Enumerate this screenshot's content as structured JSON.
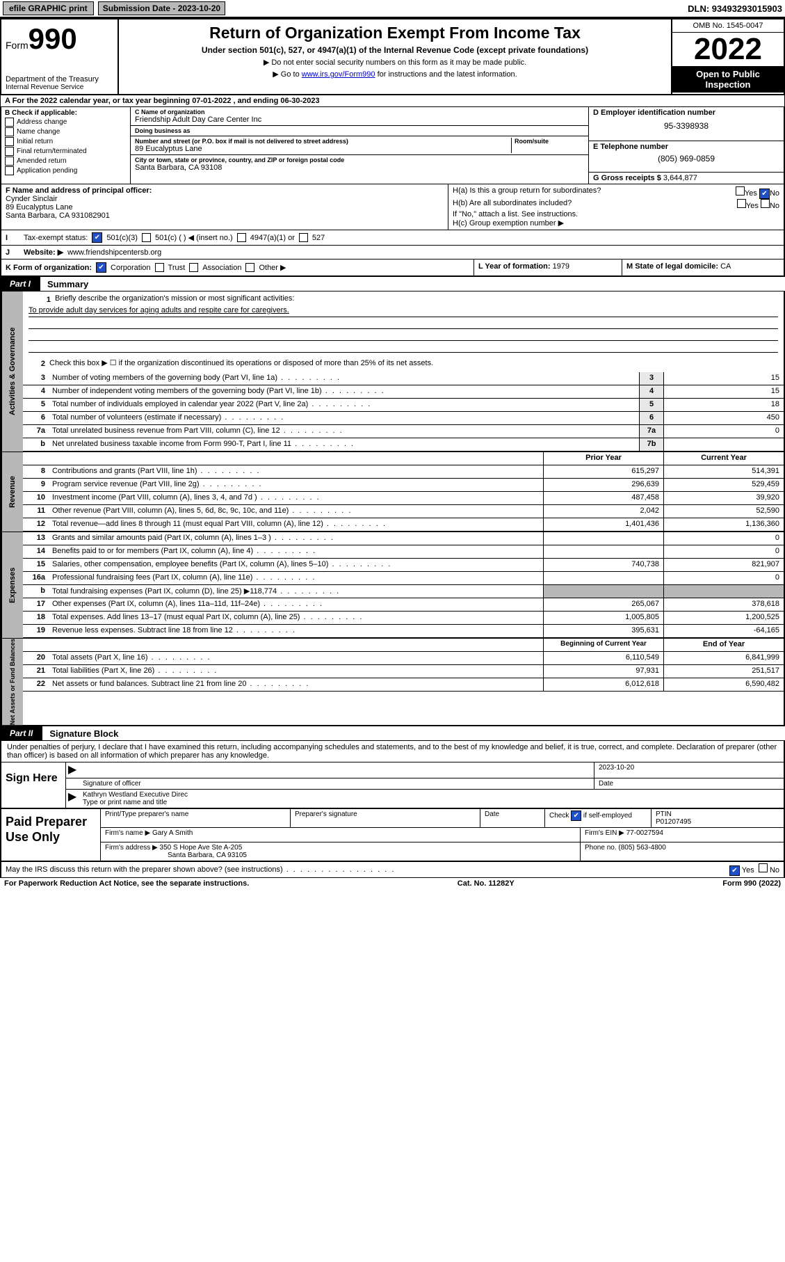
{
  "topbar": {
    "efile": "efile GRAPHIC print",
    "submission_label": "Submission Date - 2023-10-20",
    "dln": "DLN: 93493293015903"
  },
  "header": {
    "form_word": "Form",
    "form_num": "990",
    "title": "Return of Organization Exempt From Income Tax",
    "subtitle": "Under section 501(c), 527, or 4947(a)(1) of the Internal Revenue Code (except private foundations)",
    "note1": "▶ Do not enter social security numbers on this form as it may be made public.",
    "note2_pre": "▶ Go to ",
    "note2_link": "www.irs.gov/Form990",
    "note2_post": " for instructions and the latest information.",
    "dept": "Department of the Treasury",
    "irs": "Internal Revenue Service",
    "omb": "OMB No. 1545-0047",
    "year": "2022",
    "public1": "Open to Public",
    "public2": "Inspection"
  },
  "row_a": "A For the 2022 calendar year, or tax year beginning 07-01-2022     , and ending 06-30-2023",
  "b": {
    "heading": "B Check if applicable:",
    "opts": [
      "Address change",
      "Name change",
      "Initial return",
      "Final return/terminated",
      "Amended return",
      "Application pending"
    ]
  },
  "c": {
    "name_lbl": "C Name of organization",
    "name": "Friendship Adult Day Care Center Inc",
    "dba_lbl": "Doing business as",
    "dba": "",
    "addr_lbl": "Number and street (or P.O. box if mail is not delivered to street address)",
    "room_lbl": "Room/suite",
    "addr": "89 Eucalyptus Lane",
    "city_lbl": "City or town, state or province, country, and ZIP or foreign postal code",
    "city": "Santa Barbara, CA  93108"
  },
  "d": {
    "ein_lbl": "D Employer identification number",
    "ein": "95-3398938",
    "tel_lbl": "E Telephone number",
    "tel": "(805) 969-0859",
    "gross_lbl": "G Gross receipts $",
    "gross": "3,644,877"
  },
  "f": {
    "lbl": "F Name and address of principal officer:",
    "name": "Cynder Sinclair",
    "addr1": "89 Eucalyptus Lane",
    "addr2": "Santa Barbara, CA  931082901"
  },
  "h": {
    "a": "H(a)  Is this a group return for subordinates?",
    "b": "H(b)  Are all subordinates included?",
    "note": "If \"No,\" attach a list. See instructions.",
    "c": "H(c)  Group exemption number ▶"
  },
  "i": {
    "lbl": "Tax-exempt status:",
    "o1": "501(c)(3)",
    "o2": "501(c) (  ) ◀ (insert no.)",
    "o3": "4947(a)(1) or",
    "o4": "527"
  },
  "j": {
    "lbl": "Website: ▶",
    "val": "www.friendshipcentersb.org"
  },
  "k": {
    "lbl": "K Form of organization:",
    "o1": "Corporation",
    "o2": "Trust",
    "o3": "Association",
    "o4": "Other ▶"
  },
  "l": {
    "lbl": "L Year of formation:",
    "val": "1979"
  },
  "m": {
    "lbl": "M State of legal domicile:",
    "val": "CA"
  },
  "part1": {
    "tag": "Part I",
    "title": "Summary",
    "q1": "Briefly describe the organization's mission or most significant activities:",
    "mission": "To provide adult day services for aging adults and respite care for caregivers.",
    "q2": "Check this box ▶ ☐  if the organization discontinued its operations or disposed of more than 25% of its net assets.",
    "lines_gov": [
      {
        "n": "3",
        "t": "Number of voting members of the governing body (Part VI, line 1a)",
        "box": "3",
        "v": "15"
      },
      {
        "n": "4",
        "t": "Number of independent voting members of the governing body (Part VI, line 1b)",
        "box": "4",
        "v": "15"
      },
      {
        "n": "5",
        "t": "Total number of individuals employed in calendar year 2022 (Part V, line 2a)",
        "box": "5",
        "v": "18"
      },
      {
        "n": "6",
        "t": "Total number of volunteers (estimate if necessary)",
        "box": "6",
        "v": "450"
      },
      {
        "n": "7a",
        "t": "Total unrelated business revenue from Part VIII, column (C), line 12",
        "box": "7a",
        "v": "0"
      },
      {
        "n": "b",
        "t": "Net unrelated business taxable income from Form 990-T, Part I, line 11",
        "box": "7b",
        "v": ""
      }
    ],
    "col_hdr1": "Prior Year",
    "col_hdr2": "Current Year",
    "rev": [
      {
        "n": "8",
        "t": "Contributions and grants (Part VIII, line 1h)",
        "p": "615,297",
        "c": "514,391"
      },
      {
        "n": "9",
        "t": "Program service revenue (Part VIII, line 2g)",
        "p": "296,639",
        "c": "529,459"
      },
      {
        "n": "10",
        "t": "Investment income (Part VIII, column (A), lines 3, 4, and 7d )",
        "p": "487,458",
        "c": "39,920"
      },
      {
        "n": "11",
        "t": "Other revenue (Part VIII, column (A), lines 5, 6d, 8c, 9c, 10c, and 11e)",
        "p": "2,042",
        "c": "52,590"
      },
      {
        "n": "12",
        "t": "Total revenue—add lines 8 through 11 (must equal Part VIII, column (A), line 12)",
        "p": "1,401,436",
        "c": "1,136,360"
      }
    ],
    "exp": [
      {
        "n": "13",
        "t": "Grants and similar amounts paid (Part IX, column (A), lines 1–3 )",
        "p": "",
        "c": "0"
      },
      {
        "n": "14",
        "t": "Benefits paid to or for members (Part IX, column (A), line 4)",
        "p": "",
        "c": "0"
      },
      {
        "n": "15",
        "t": "Salaries, other compensation, employee benefits (Part IX, column (A), lines 5–10)",
        "p": "740,738",
        "c": "821,907"
      },
      {
        "n": "16a",
        "t": "Professional fundraising fees (Part IX, column (A), line 11e)",
        "p": "",
        "c": "0"
      },
      {
        "n": "b",
        "t": "Total fundraising expenses (Part IX, column (D), line 25) ▶118,774",
        "p": "GRAY",
        "c": "GRAY"
      },
      {
        "n": "17",
        "t": "Other expenses (Part IX, column (A), lines 11a–11d, 11f–24e)",
        "p": "265,067",
        "c": "378,618"
      },
      {
        "n": "18",
        "t": "Total expenses. Add lines 13–17 (must equal Part IX, column (A), line 25)",
        "p": "1,005,805",
        "c": "1,200,525"
      },
      {
        "n": "19",
        "t": "Revenue less expenses. Subtract line 18 from line 12",
        "p": "395,631",
        "c": "-64,165"
      }
    ],
    "col_hdr3": "Beginning of Current Year",
    "col_hdr4": "End of Year",
    "net": [
      {
        "n": "20",
        "t": "Total assets (Part X, line 16)",
        "p": "6,110,549",
        "c": "6,841,999"
      },
      {
        "n": "21",
        "t": "Total liabilities (Part X, line 26)",
        "p": "97,931",
        "c": "251,517"
      },
      {
        "n": "22",
        "t": "Net assets or fund balances. Subtract line 21 from line 20",
        "p": "6,012,618",
        "c": "6,590,482"
      }
    ],
    "tab_gov": "Activities & Governance",
    "tab_rev": "Revenue",
    "tab_exp": "Expenses",
    "tab_net": "Net Assets or Fund Balances"
  },
  "part2": {
    "tag": "Part II",
    "title": "Signature Block",
    "intro": "Under penalties of perjury, I declare that I have examined this return, including accompanying schedules and statements, and to the best of my knowledge and belief, it is true, correct, and complete. Declaration of preparer (other than officer) is based on all information of which preparer has any knowledge.",
    "sign_here": "Sign Here",
    "sig_lbl": "Signature of officer",
    "date_lbl": "Date",
    "date_val": "2023-10-20",
    "officer": "Kathryn Westland Executive Direc",
    "type_lbl": "Type or print name and title"
  },
  "prep": {
    "heading": "Paid Preparer Use Only",
    "h1": "Print/Type preparer's name",
    "h2": "Preparer's signature",
    "h3": "Date",
    "h4_pre": "Check",
    "h4_post": "if self-employed",
    "h5": "PTIN",
    "ptin": "P01207495",
    "firm_lbl": "Firm's name   ▶",
    "firm": "Gary A Smith",
    "fein_lbl": "Firm's EIN ▶",
    "fein": "77-0027594",
    "addr_lbl": "Firm's address ▶",
    "addr1": "350 S Hope Ave Ste A-205",
    "addr2": "Santa Barbara, CA  93105",
    "phone_lbl": "Phone no.",
    "phone": "(805) 563-4800"
  },
  "footer": {
    "discuss": "May the IRS discuss this return with the preparer shown above? (see instructions)",
    "yes": "Yes",
    "no": "No",
    "pra": "For Paperwork Reduction Act Notice, see the separate instructions.",
    "cat": "Cat. No. 11282Y",
    "form": "Form 990 (2022)"
  }
}
